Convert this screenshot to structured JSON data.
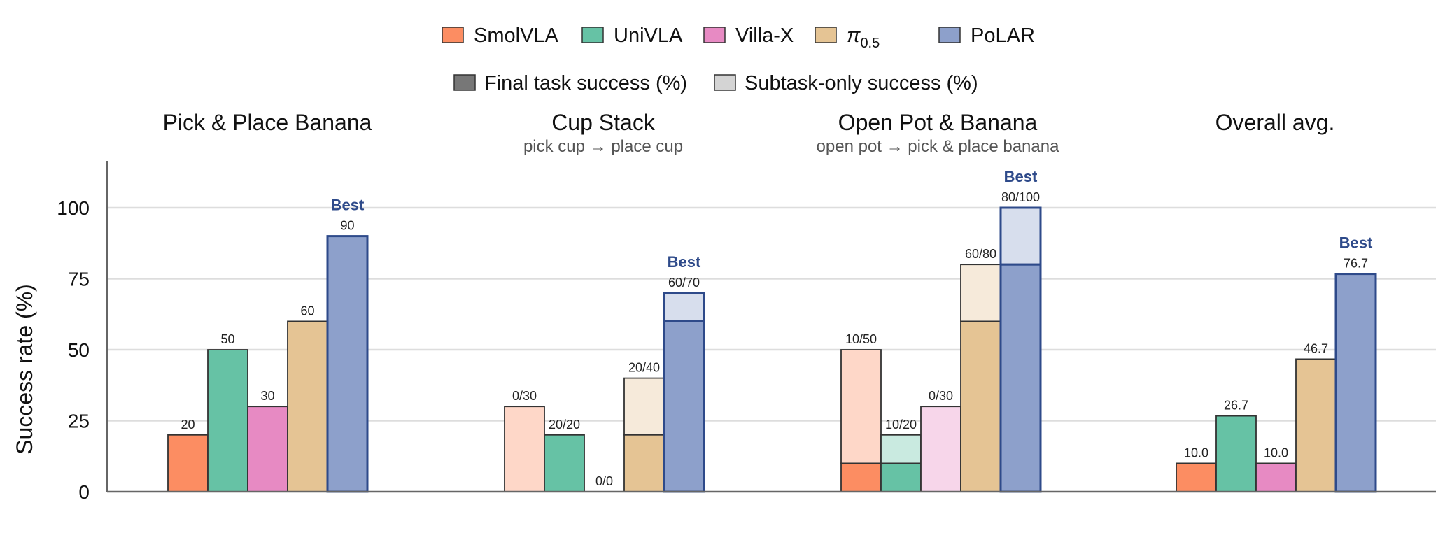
{
  "chart_data": {
    "type": "bar",
    "ylabel": "Success rate (%)",
    "ylim": [
      0,
      115
    ],
    "yticks": [
      0,
      25,
      50,
      75,
      100
    ],
    "grid": true,
    "legend_placement": "top-center",
    "series": [
      {
        "name": "SmolVLA",
        "color": "#fc8d62"
      },
      {
        "name": "UniVLA",
        "color": "#66c2a5"
      },
      {
        "name": "Villa-X",
        "color": "#e78ac3"
      },
      {
        "name_base": "π",
        "name_sub": "0.5",
        "color": "#e5c494"
      },
      {
        "name": "PoLAR",
        "color": "#8da0cb"
      }
    ],
    "style_legend": [
      {
        "label": "Final task success (%)",
        "color": "#777777"
      },
      {
        "label": "Subtask-only success (%)",
        "color": "#d4d4d4"
      }
    ],
    "best_label": "Best",
    "groups": [
      {
        "title": "Pick & Place Banana",
        "subtitle": "",
        "final": [
          20,
          50,
          30,
          60,
          90
        ],
        "subtask": [
          null,
          null,
          null,
          null,
          null
        ],
        "labels": [
          "20",
          "50",
          "30",
          "60",
          "90"
        ],
        "best_index": 4
      },
      {
        "title": "Cup Stack",
        "subtitle": "pick cup → place cup",
        "final": [
          0,
          20,
          0,
          20,
          60
        ],
        "subtask": [
          30,
          20,
          0,
          40,
          70
        ],
        "labels": [
          "0/30",
          "20/20",
          "0/0",
          "20/40",
          "60/70"
        ],
        "best_index": 4
      },
      {
        "title": "Open Pot & Banana",
        "subtitle": "open pot → pick & place banana",
        "final": [
          10,
          10,
          0,
          60,
          80
        ],
        "subtask": [
          50,
          20,
          30,
          80,
          100
        ],
        "labels": [
          "10/50",
          "10/20",
          "0/30",
          "60/80",
          "80/100"
        ],
        "best_index": 4
      },
      {
        "title": "Overall avg.",
        "subtitle": "",
        "final": [
          10.0,
          26.7,
          10.0,
          46.7,
          76.7
        ],
        "subtask": [
          null,
          null,
          null,
          null,
          null
        ],
        "labels": [
          "10.0",
          "26.7",
          "10.0",
          "46.7",
          "76.7"
        ],
        "best_index": 4
      }
    ]
  }
}
